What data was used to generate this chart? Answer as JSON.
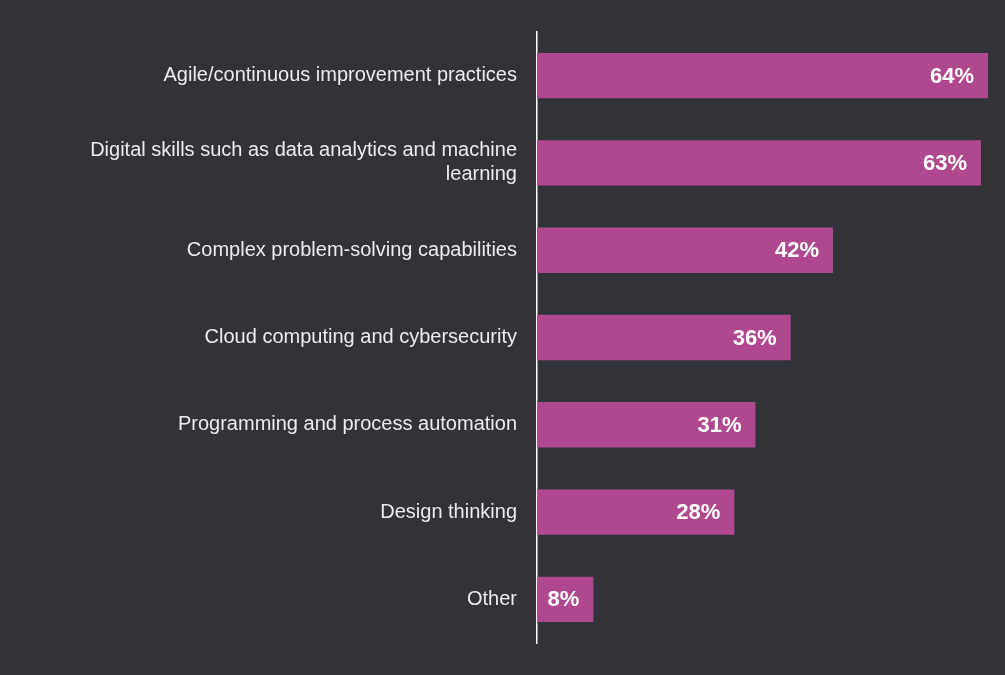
{
  "chart_data": {
    "type": "bar",
    "orientation": "horizontal",
    "categories": [
      "Agile/continuous improvement practices",
      "Digital skills such as data analytics and machine learning",
      "Complex problem-solving capabilities",
      "Cloud computing and cybersecurity",
      "Programming and process automation",
      "Design thinking",
      "Other"
    ],
    "values": [
      64,
      63,
      42,
      36,
      31,
      28,
      8
    ],
    "color": "#b0488f",
    "value_labels": [
      "64%",
      "63%",
      "42%",
      "36%",
      "31%",
      "28%",
      "8%"
    ],
    "legend": false
  }
}
